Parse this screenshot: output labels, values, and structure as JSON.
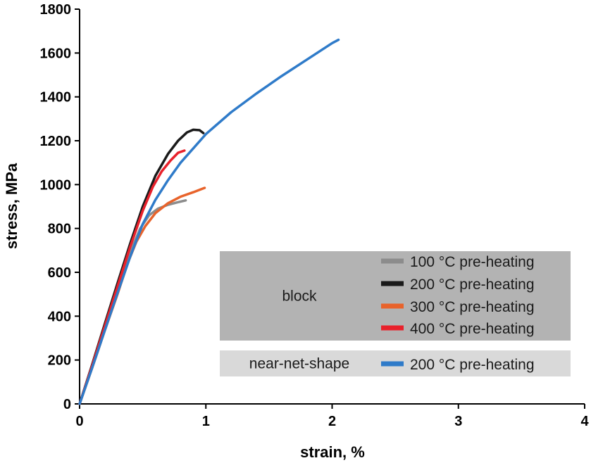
{
  "chart_data": {
    "type": "line",
    "title": "",
    "xlabel": "strain, %",
    "ylabel": "stress, MPa",
    "xlim": [
      0,
      4
    ],
    "ylim": [
      0,
      1800
    ],
    "x_ticks": [
      0,
      1,
      2,
      3,
      4
    ],
    "y_ticks": [
      0,
      200,
      400,
      600,
      800,
      1000,
      1200,
      1400,
      1600,
      1800
    ],
    "grid": false,
    "legend_position": "bottom-right",
    "legend_groups": [
      {
        "label": "block",
        "entries": [
          0,
          1,
          2,
          3
        ]
      },
      {
        "label": "near-net-shape",
        "entries": [
          4
        ]
      }
    ],
    "series": [
      {
        "name": "100 °C pre-heating",
        "color": "#8c8c8c",
        "points": [
          [
            0,
            0
          ],
          [
            0.1,
            170
          ],
          [
            0.2,
            345
          ],
          [
            0.3,
            520
          ],
          [
            0.4,
            690
          ],
          [
            0.48,
            800
          ],
          [
            0.55,
            860
          ],
          [
            0.62,
            890
          ],
          [
            0.7,
            908
          ],
          [
            0.78,
            920
          ],
          [
            0.84,
            928
          ]
        ]
      },
      {
        "name": "200 °C pre-heating",
        "color": "#1a1a1a",
        "points": [
          [
            0,
            0
          ],
          [
            0.1,
            180
          ],
          [
            0.2,
            365
          ],
          [
            0.3,
            550
          ],
          [
            0.4,
            730
          ],
          [
            0.5,
            900
          ],
          [
            0.6,
            1040
          ],
          [
            0.7,
            1140
          ],
          [
            0.78,
            1200
          ],
          [
            0.85,
            1238
          ],
          [
            0.9,
            1250
          ],
          [
            0.95,
            1248
          ],
          [
            0.98,
            1235
          ]
        ]
      },
      {
        "name": "300 °C pre-heating",
        "color": "#e8632b",
        "points": [
          [
            0,
            0
          ],
          [
            0.1,
            165
          ],
          [
            0.2,
            335
          ],
          [
            0.3,
            500
          ],
          [
            0.38,
            640
          ],
          [
            0.45,
            740
          ],
          [
            0.52,
            810
          ],
          [
            0.6,
            870
          ],
          [
            0.7,
            915
          ],
          [
            0.8,
            945
          ],
          [
            0.9,
            965
          ],
          [
            0.99,
            985
          ]
        ]
      },
      {
        "name": "400 °C pre-heating",
        "color": "#e8212b",
        "points": [
          [
            0,
            0
          ],
          [
            0.1,
            175
          ],
          [
            0.2,
            355
          ],
          [
            0.3,
            535
          ],
          [
            0.4,
            715
          ],
          [
            0.5,
            880
          ],
          [
            0.58,
            990
          ],
          [
            0.65,
            1060
          ],
          [
            0.72,
            1110
          ],
          [
            0.78,
            1145
          ],
          [
            0.83,
            1155
          ]
        ]
      },
      {
        "name": "200 °C pre-heating",
        "color": "#2f7bc9",
        "points": [
          [
            0,
            0
          ],
          [
            0.1,
            165
          ],
          [
            0.2,
            335
          ],
          [
            0.3,
            505
          ],
          [
            0.4,
            670
          ],
          [
            0.5,
            820
          ],
          [
            0.6,
            930
          ],
          [
            0.7,
            1020
          ],
          [
            0.8,
            1100
          ],
          [
            1.0,
            1230
          ],
          [
            1.2,
            1330
          ],
          [
            1.4,
            1415
          ],
          [
            1.6,
            1495
          ],
          [
            1.8,
            1570
          ],
          [
            2.0,
            1645
          ],
          [
            2.05,
            1660
          ]
        ]
      }
    ]
  }
}
